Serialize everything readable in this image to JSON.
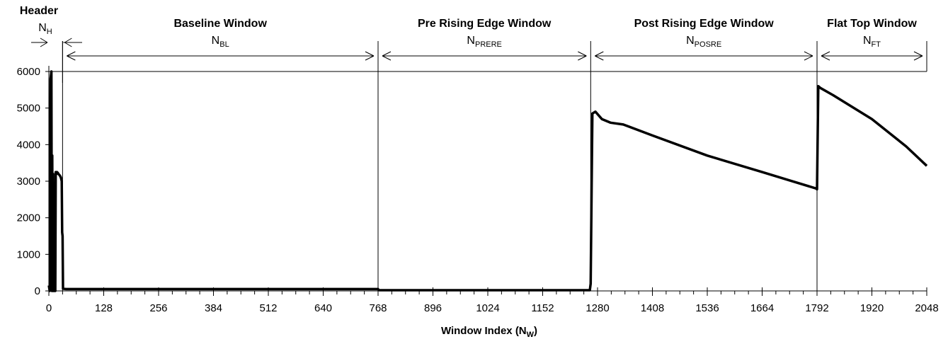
{
  "chart_data": {
    "type": "line",
    "title": "",
    "xlabel": "Window Index (N",
    "xlabel_sub": "W",
    "xlabel_suffix": ")",
    "ylabel": "",
    "xlim": [
      0,
      2048
    ],
    "ylim": [
      0,
      6000
    ],
    "x_ticks": [
      0,
      128,
      256,
      384,
      512,
      640,
      768,
      896,
      1024,
      1152,
      1280,
      1408,
      1536,
      1664,
      1792,
      1920,
      2048
    ],
    "y_ticks": [
      0,
      1000,
      2000,
      3000,
      4000,
      5000,
      6000
    ],
    "x_minor_tick_step": 32,
    "grid": false,
    "legend": "none",
    "windows": [
      {
        "title": "Header",
        "symbol": "N",
        "subscript": "H",
        "start": 0,
        "end": 32
      },
      {
        "title": "Baseline Window",
        "symbol": "N",
        "subscript": "BL",
        "start": 32,
        "end": 768
      },
      {
        "title": "Pre Rising Edge Window",
        "symbol": "N",
        "subscript": "PRERE",
        "start": 768,
        "end": 1264
      },
      {
        "title": "Post Rising Edge Window",
        "symbol": "N",
        "subscript": "POSRE",
        "start": 1264,
        "end": 1792
      },
      {
        "title": "Flat Top Window",
        "symbol": "N",
        "subscript": "FT",
        "start": 1792,
        "end": 2048
      }
    ],
    "series": [
      {
        "x": [
          0,
          2,
          4,
          6,
          7,
          8,
          9,
          10,
          11,
          12,
          13,
          14,
          15,
          16,
          17,
          18,
          19,
          20,
          21,
          22,
          24,
          26,
          28,
          30,
          31,
          32,
          33,
          40,
          64,
          128,
          256,
          384,
          512,
          640,
          768,
          770,
          896,
          1024,
          1152,
          1262,
          1264,
          1268,
          1275,
          1290,
          1310,
          1340,
          1408,
          1536,
          1664,
          1790,
          1792,
          1795,
          1800,
          1830,
          1920,
          2000,
          2048
        ],
        "y": [
          150,
          0,
          5800,
          6000,
          0,
          3700,
          0,
          3200,
          0,
          2800,
          0,
          2500,
          0,
          3250,
          3250,
          3200,
          3250,
          3230,
          3230,
          3200,
          3180,
          3150,
          3100,
          3000,
          1600,
          1500,
          60,
          50,
          50,
          50,
          50,
          50,
          50,
          50,
          50,
          20,
          20,
          20,
          20,
          20,
          200,
          4850,
          4900,
          4700,
          4600,
          4550,
          4250,
          3700,
          3250,
          2800,
          2780,
          5600,
          5550,
          5350,
          4700,
          3950,
          3420
        ]
      }
    ]
  }
}
